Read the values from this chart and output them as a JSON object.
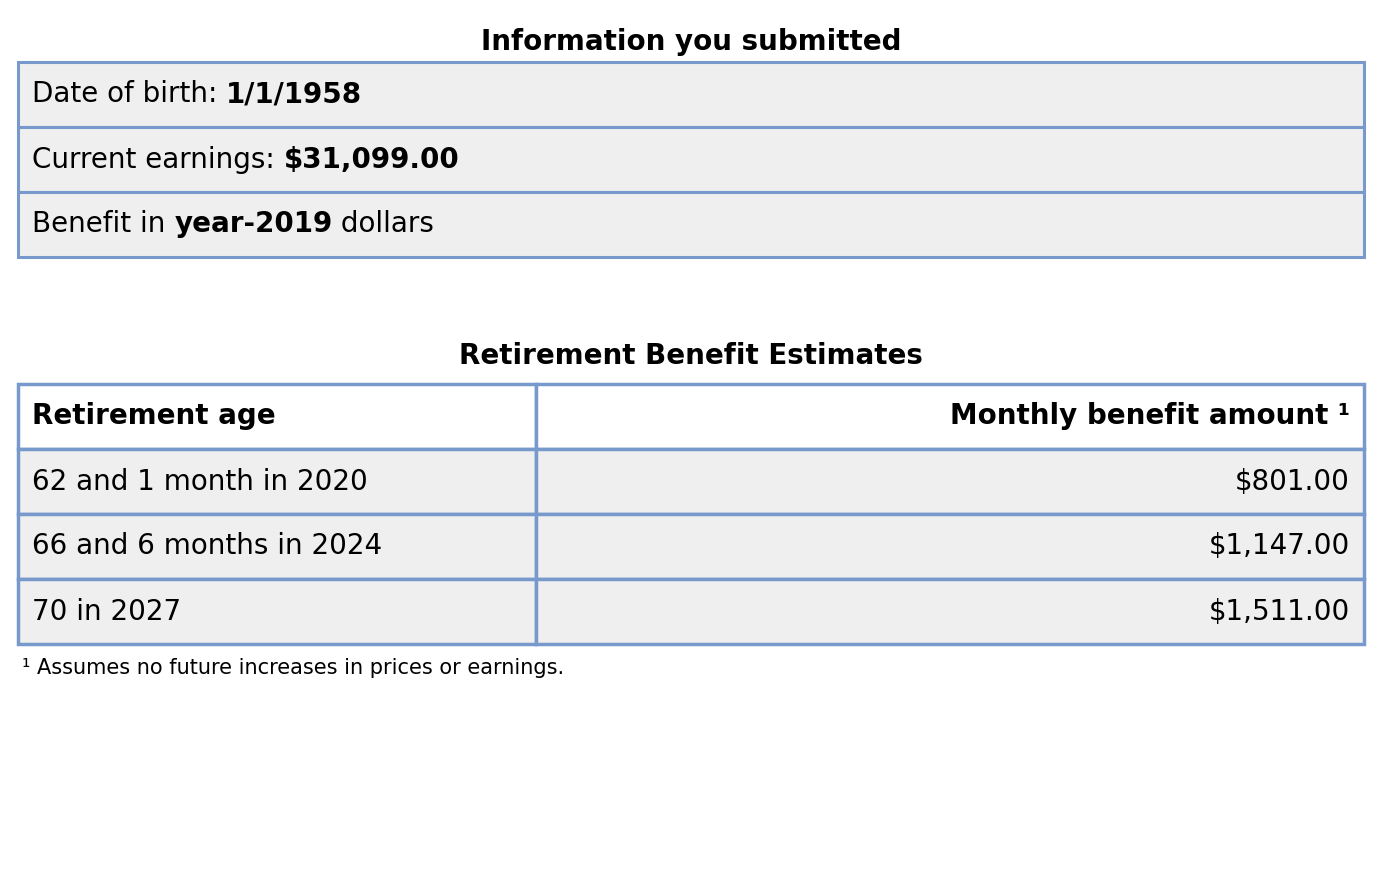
{
  "title1": "Information you submitted",
  "info_rows": [
    [
      {
        "text": "Date of birth: ",
        "bold": false
      },
      {
        "text": "1/1/1958",
        "bold": true
      }
    ],
    [
      {
        "text": "Current earnings: ",
        "bold": false
      },
      {
        "text": "$31,099.00",
        "bold": true
      }
    ],
    [
      {
        "text": "Benefit in ",
        "bold": false
      },
      {
        "text": "year-2019",
        "bold": true
      },
      {
        "text": " dollars",
        "bold": false
      }
    ]
  ],
  "title2": "Retirement Benefit Estimates",
  "table_header": [
    "Retirement age",
    "Monthly benefit amount ¹"
  ],
  "table_rows": [
    [
      "62 and 1 month in 2020",
      "$801.00"
    ],
    [
      "66 and 6 months in 2024",
      "$1,147.00"
    ],
    [
      "70 in 2027",
      "$1,511.00"
    ]
  ],
  "footnote": "¹ Assumes no future increases in prices or earnings.",
  "bg_color": "#ffffff",
  "cell_bg": "#efefef",
  "border_color": "#7799cc",
  "header_bg": "#ffffff",
  "text_color": "#000000",
  "title_fontsize": 20,
  "cell_fontsize": 20,
  "header_fontsize": 20,
  "footnote_fontsize": 15
}
